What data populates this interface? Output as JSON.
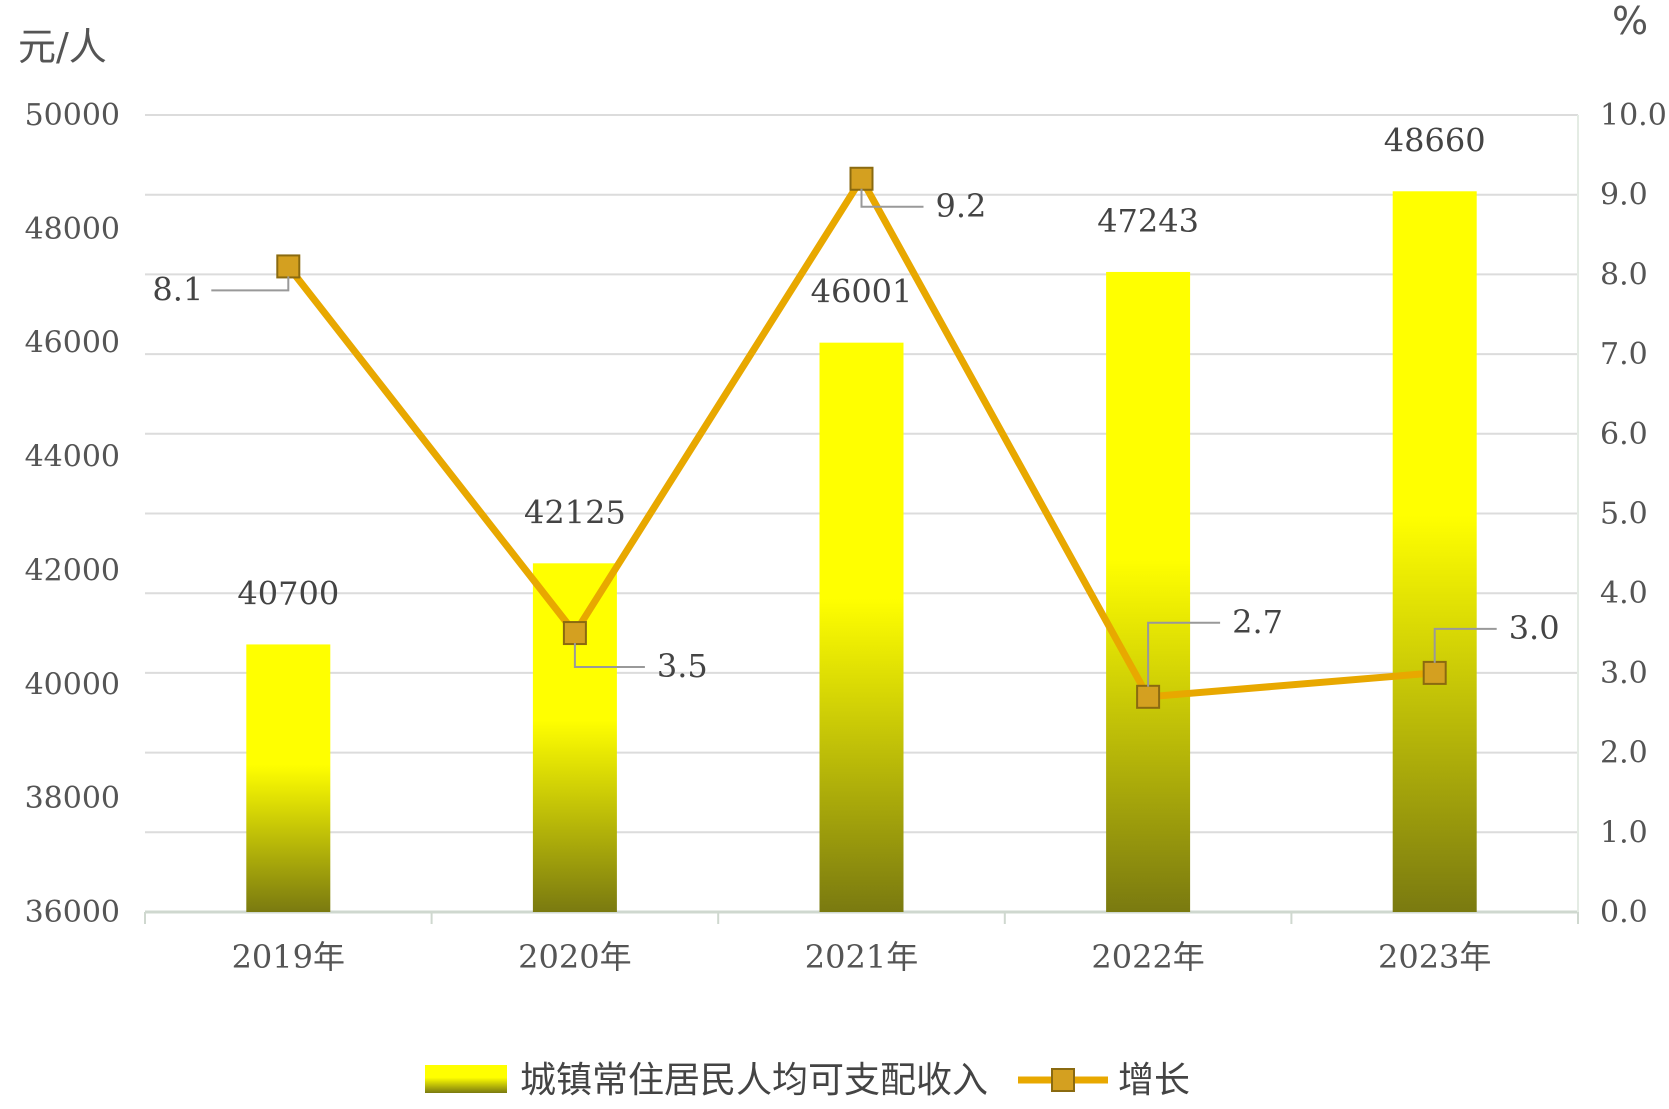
{
  "chart_data": {
    "type": "bar",
    "categories": [
      "2019年",
      "2020年",
      "2021年",
      "2022年",
      "2023年"
    ],
    "series": [
      {
        "name": "城镇常住居民人均可支配收入",
        "type": "bar",
        "axis": "left",
        "values": [
          40700,
          42125,
          46001,
          47243,
          48660
        ],
        "labels": [
          "40700",
          "42125",
          "46001",
          "47243",
          "48660"
        ]
      },
      {
        "name": "增长",
        "type": "line",
        "axis": "right",
        "values": [
          8.1,
          3.5,
          9.2,
          2.7,
          3.0
        ],
        "labels": [
          "8.1",
          "3.5",
          "9.2",
          "2.7",
          "3.0"
        ]
      }
    ],
    "y_left": {
      "unit": "元/人",
      "min": 36000,
      "max": 50000,
      "ticks": [
        "36000",
        "38000",
        "40000",
        "42000",
        "44000",
        "46000",
        "48000",
        "50000"
      ]
    },
    "y_right": {
      "unit": "%",
      "min": 0,
      "max": 10,
      "ticks": [
        "0.0",
        "1.0",
        "2.0",
        "3.0",
        "4.0",
        "5.0",
        "6.0",
        "7.0",
        "8.0",
        "9.0",
        "10.0"
      ]
    },
    "grid": true,
    "legend_position": "bottom",
    "colors": {
      "bar_top": "#ffff00",
      "bar_bottom": "#7a7a10",
      "line": "#e8a800",
      "marker_fill": "#d4a020",
      "marker_stroke": "#8a6a10"
    }
  }
}
